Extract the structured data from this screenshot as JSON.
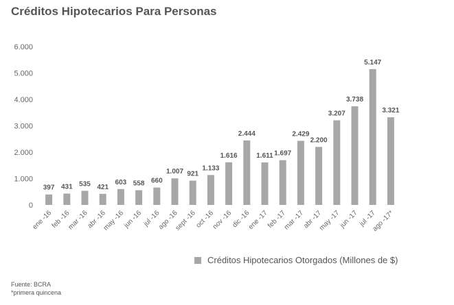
{
  "chart_data": {
    "type": "bar",
    "title": "Créditos Hipotecarios Para Personas",
    "categories": [
      "ene -16",
      "feb -16",
      "mar -16",
      "abr -16",
      "may -16",
      "jun -16",
      "jul -16",
      "ago -16",
      "sept -16",
      "oct -16",
      "nov -16",
      "dic -16",
      "ene -17",
      "feb -17",
      "mar -17",
      "abr -17",
      "may -17",
      "jun -17",
      "jul -17",
      "ago -17*"
    ],
    "series": [
      {
        "name": "Créditos Hipotecarios Otorgados (Millones de $)",
        "values": [
          397,
          431,
          535,
          421,
          603,
          558,
          660,
          1007,
          921,
          1133,
          1616,
          2444,
          1611,
          1697,
          2429,
          2200,
          3207,
          3738,
          5147,
          3321
        ],
        "labels": [
          "397",
          "431",
          "535",
          "421",
          "603",
          "558",
          "660",
          "1.007",
          "921",
          "1.133",
          "1.616",
          "2.444",
          "1.611",
          "1.697",
          "2.429",
          "2.200",
          "3.207",
          "3.738",
          "5.147",
          "3.321"
        ]
      }
    ],
    "ylim": [
      0,
      6000
    ],
    "yticks": [
      0,
      1000,
      2000,
      3000,
      4000,
      5000,
      6000
    ],
    "ytick_labels": [
      "0",
      "1.000",
      "2.000",
      "3.000",
      "4.000",
      "5.000",
      "6.000"
    ],
    "xlabel": "",
    "ylabel": "",
    "grid": false,
    "legend_position": "bottom-right"
  },
  "colors": {
    "bar": "#a7a7a7",
    "text": "#555555",
    "axis_labels": "#666666"
  },
  "footnotes": {
    "source": "Fuente: BCRA",
    "note": "*primera quincena"
  }
}
